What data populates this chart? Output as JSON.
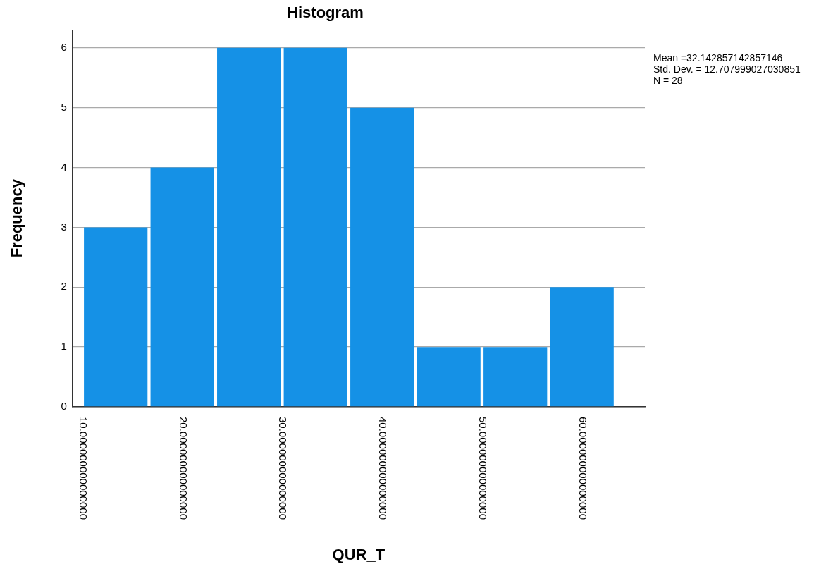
{
  "chart_data": {
    "type": "histogram",
    "title": "Histogram",
    "xlabel": "QUR_T",
    "ylabel": "Frequency",
    "bins": [
      10,
      16.67,
      23.33,
      30,
      36.67,
      43.33,
      50,
      56.67,
      63.33
    ],
    "values": [
      3,
      4,
      6,
      6,
      5,
      1,
      1,
      2
    ],
    "color": "#1591e6",
    "xlim": [
      9,
      66.3
    ],
    "xticks": [
      {
        "value": 10,
        "label": "10.000000000000000"
      },
      {
        "value": 20,
        "label": "20.000000000000000"
      },
      {
        "value": 30,
        "label": "30.000000000000000"
      },
      {
        "value": 40,
        "label": "40.000000000000000"
      },
      {
        "value": 50,
        "label": "50.000000000000000"
      },
      {
        "value": 60,
        "label": "60.000000000000000"
      }
    ],
    "ylim": [
      0,
      6.3
    ],
    "yticks": [
      0,
      1,
      2,
      3,
      4,
      5,
      6
    ],
    "grid": "y",
    "legend": false,
    "annotations": [
      "Mean =32.142857142857146",
      "Std. Dev. = 12.707999027030851",
      "N = 28"
    ]
  }
}
